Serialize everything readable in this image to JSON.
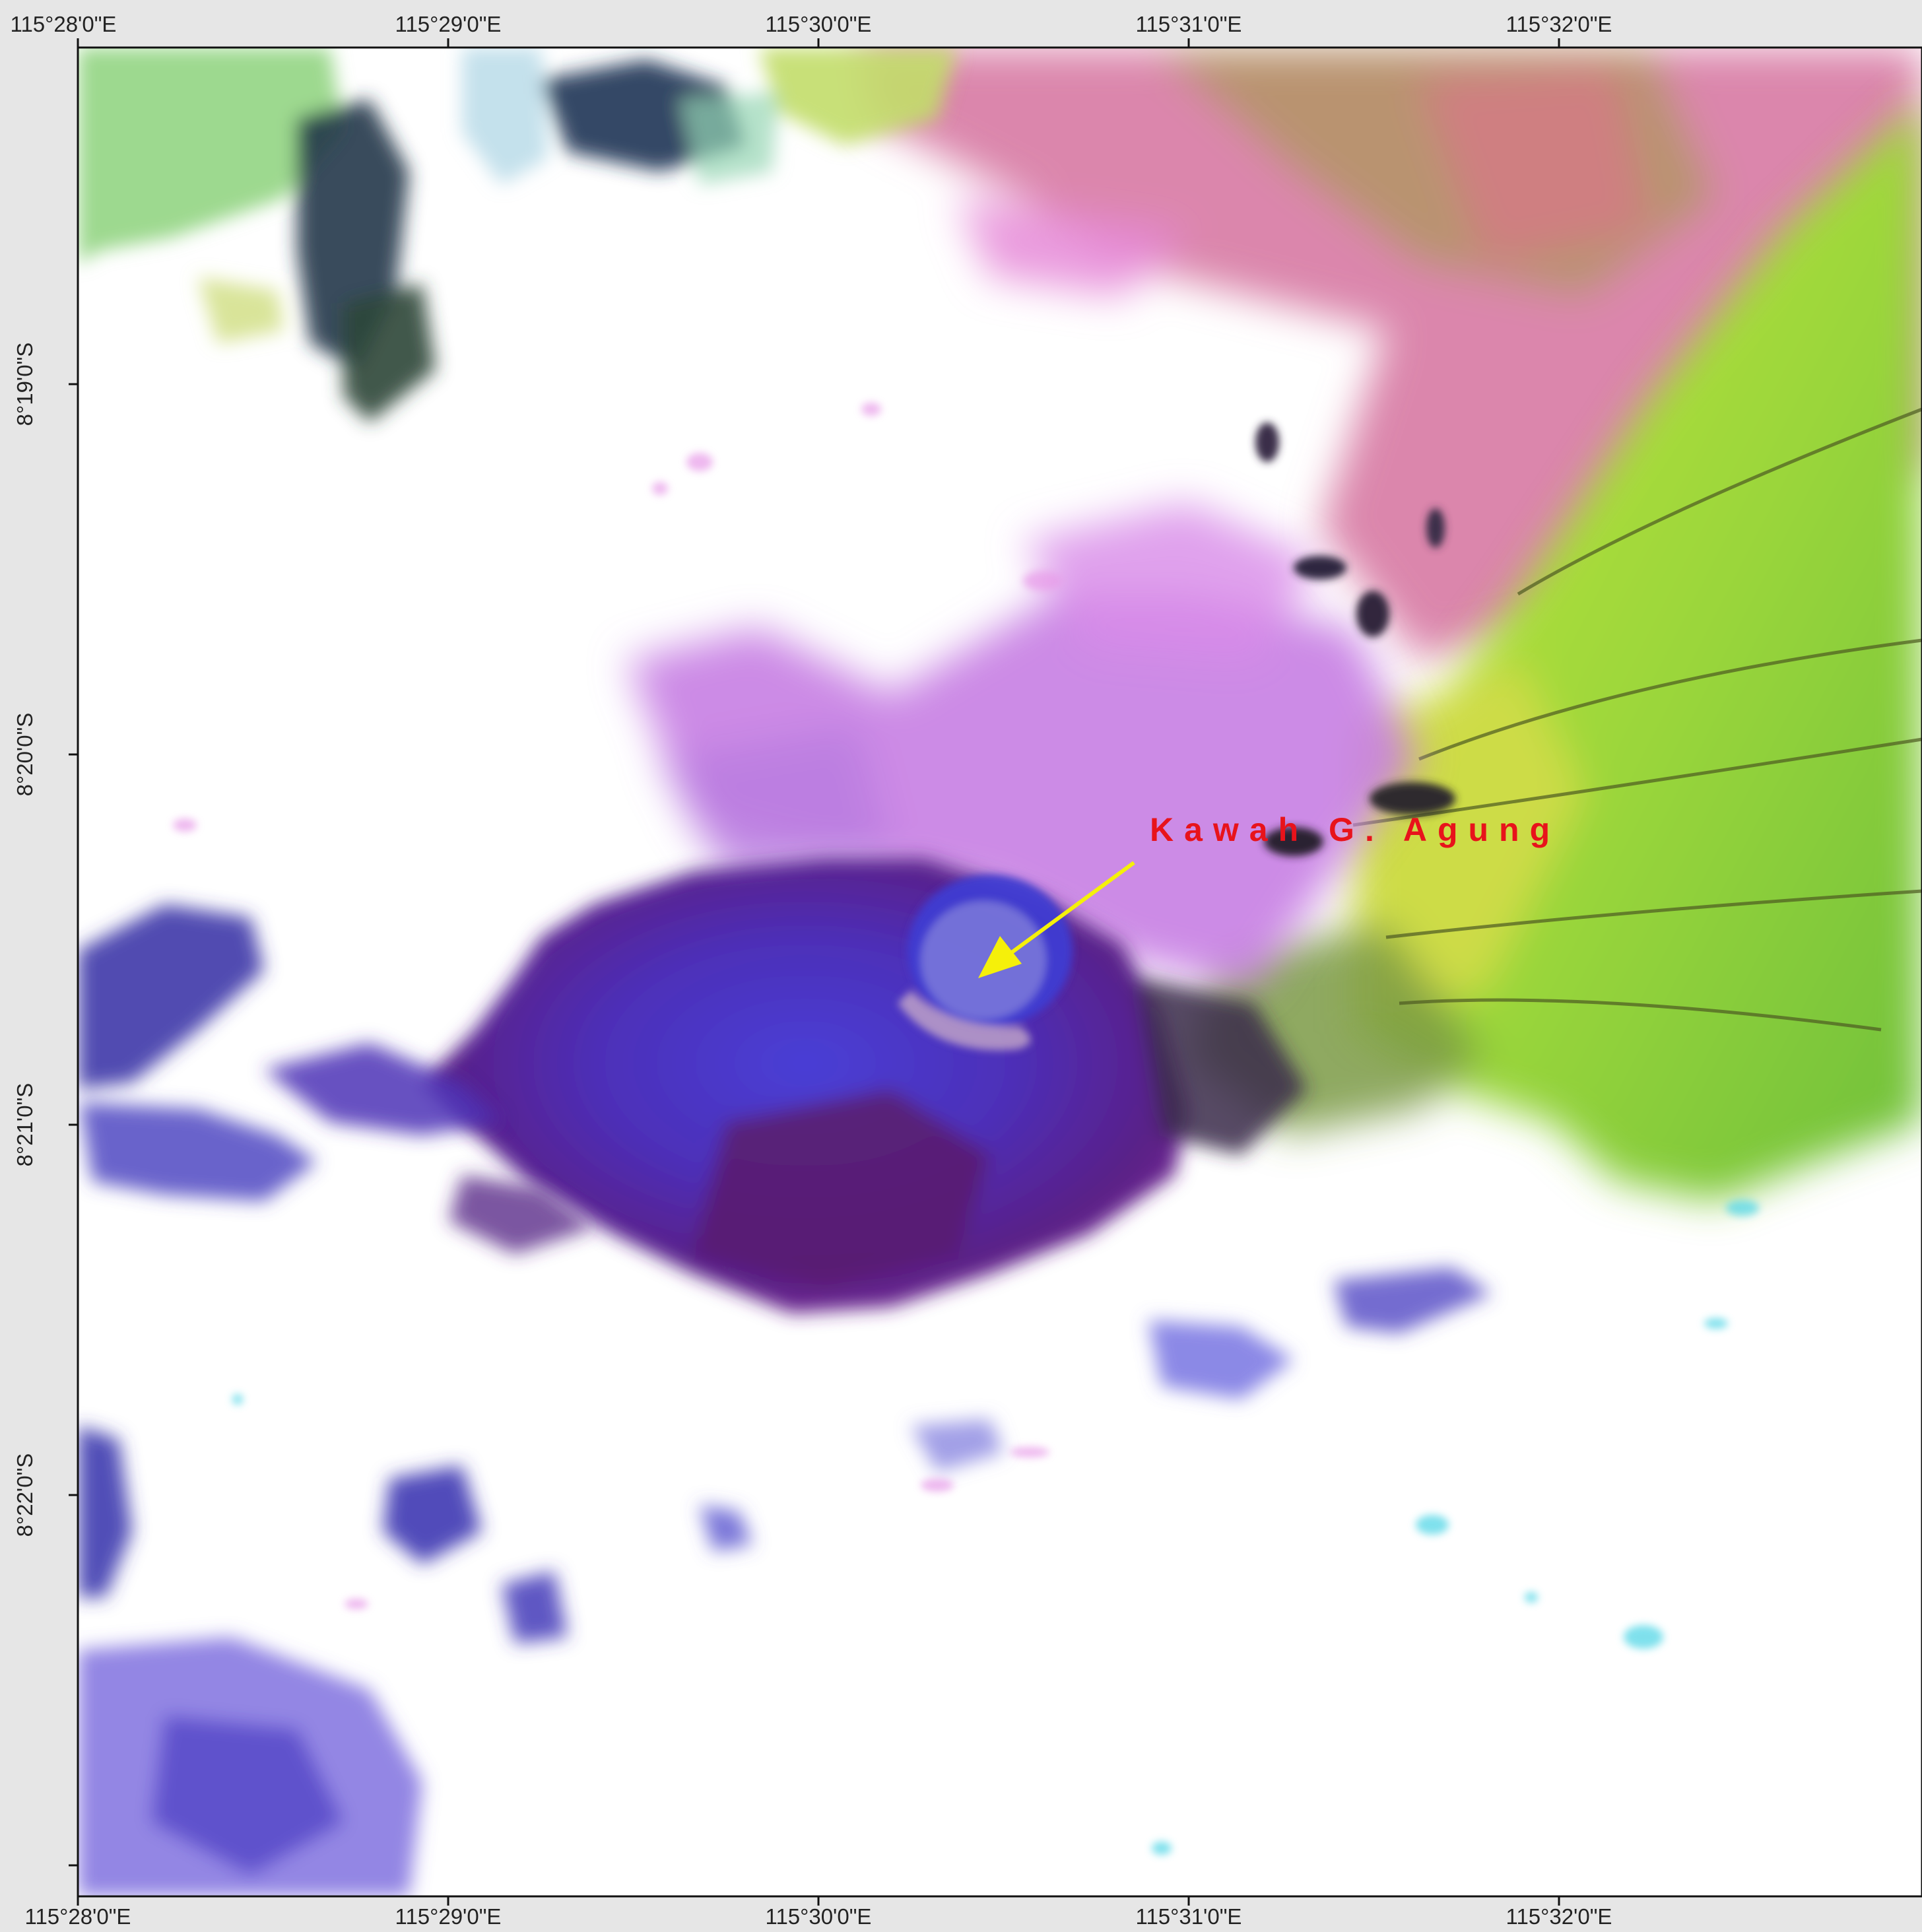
{
  "map": {
    "longitude_ticks_top": [
      "115°28'0\"E",
      "115°29'0\"E",
      "115°30'0\"E",
      "115°31'0\"E",
      "115°32'0\"E"
    ],
    "longitude_ticks_bottom": [
      "115°28'0\"E",
      "115°29'0\"E",
      "115°30'0\"E",
      "115°31'0\"E",
      "115°32'0\"E"
    ],
    "latitude_ticks_left": [
      "8°19'0\"S",
      "8°20'0\"S",
      "8°21'0\"S",
      "8°22'0\"S"
    ],
    "annotation": {
      "label": "Kawah G. Agung",
      "arrow_color": "#f5f00a",
      "label_color": "#e8131b"
    },
    "imagery": "false-color satellite composite (cloud cover white, volcano in purple, vegetation in green/yellow)"
  }
}
